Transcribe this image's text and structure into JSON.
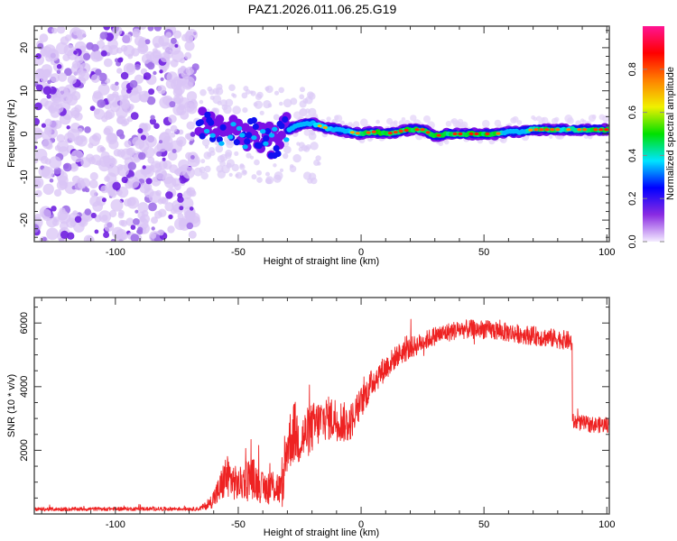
{
  "title": "PAZ1.2026.011.06.25.G19",
  "chart_data": [
    {
      "type": "heatmap",
      "name": "spectrogram",
      "title": "PAZ1.2026.011.06.25.G19",
      "xlabel": "Height of straight line (km)",
      "ylabel": "Frequency (Hz)",
      "xlim": [
        -133,
        101
      ],
      "ylim": [
        -25,
        25
      ],
      "x_ticks": [
        -100,
        -50,
        0,
        50,
        100
      ],
      "x_tick_labels": [
        "-100",
        "-50",
        "0",
        "50",
        "100"
      ],
      "y_ticks": [
        -20,
        -10,
        0,
        10,
        20
      ],
      "y_tick_labels": [
        "-20",
        "-10",
        "0",
        "10",
        "20"
      ],
      "noise_region_x": [
        -133,
        -67
      ],
      "ridge": {
        "description": "Signal ridge near 0 Hz: scattered low-amplitude blobs from -65 to -30 km, coherent high-amplitude line from -30 to 101 km",
        "x": [
          -65,
          -60,
          -55,
          -50,
          -45,
          -40,
          -35,
          -30,
          -25,
          -20,
          -15,
          -10,
          -5,
          0,
          5,
          10,
          15,
          20,
          25,
          30,
          35,
          40,
          45,
          50,
          55,
          60,
          65,
          70,
          75,
          80,
          85,
          90,
          95,
          100
        ],
        "freq_hz": [
          2,
          1.5,
          0,
          1,
          0,
          -1,
          -2,
          1,
          2,
          2.5,
          1.5,
          1,
          0.5,
          0,
          0.5,
          0,
          0.5,
          1,
          1,
          -0.5,
          0,
          0,
          0,
          0,
          0,
          0.5,
          0.5,
          1,
          1,
          1,
          1,
          1,
          1,
          1
        ],
        "amplitude": [
          0.2,
          0.25,
          0.2,
          0.3,
          0.25,
          0.3,
          0.35,
          0.45,
          0.55,
          0.7,
          0.8,
          0.6,
          0.75,
          0.85,
          0.9,
          0.95,
          0.9,
          0.95,
          0.9,
          0.95,
          0.9,
          0.95,
          0.95,
          0.95,
          0.9,
          0.6,
          0.6,
          0.85,
          0.9,
          0.85,
          0.8,
          0.85,
          0.9,
          0.95
        ]
      },
      "colorbar": {
        "label": "Normalized spectral amplitude",
        "range": [
          0,
          1
        ],
        "ticks": [
          0.0,
          0.2,
          0.4,
          0.6,
          0.8
        ],
        "tick_labels": [
          "0.0",
          "0.2",
          "0.4",
          "0.6",
          "0.8"
        ],
        "colors": [
          "#f4ecff",
          "#8a2be2",
          "#0000ff",
          "#00e5ff",
          "#00e000",
          "#f0f000",
          "#ff8000",
          "#ff0000",
          "#ff1493"
        ]
      }
    },
    {
      "type": "line",
      "name": "snr",
      "xlabel": "Height of straight line (km)",
      "ylabel": "SNR (10 * v/v)",
      "xlim": [
        -133,
        101
      ],
      "ylim": [
        0,
        6800
      ],
      "x_ticks": [
        -100,
        -50,
        0,
        50,
        100
      ],
      "x_tick_labels": [
        "-100",
        "-50",
        "0",
        "50",
        "100"
      ],
      "y_ticks": [
        2000,
        4000,
        6000
      ],
      "y_tick_labels": [
        "2000",
        "4000",
        "6000"
      ],
      "color": "#ee2222",
      "series": [
        {
          "name": "SNR",
          "x": [
            -133,
            -120,
            -100,
            -80,
            -66,
            -62,
            -58,
            -55,
            -50,
            -45,
            -40,
            -35,
            -32,
            -30,
            -27,
            -25,
            -20,
            -15,
            -10,
            -5,
            0,
            5,
            10,
            15,
            20,
            25,
            30,
            35,
            40,
            45,
            50,
            55,
            60,
            65,
            70,
            75,
            80,
            84,
            85.5,
            86,
            90,
            95,
            101
          ],
          "y": [
            150,
            150,
            160,
            160,
            160,
            300,
            700,
            1200,
            900,
            1200,
            800,
            900,
            700,
            2200,
            2600,
            2300,
            2700,
            3000,
            3000,
            2800,
            3500,
            4200,
            4600,
            5000,
            5200,
            5400,
            5600,
            5700,
            5800,
            5800,
            5800,
            5750,
            5700,
            5650,
            5600,
            5550,
            5500,
            5450,
            5400,
            2900,
            2850,
            2800,
            2800
          ],
          "noise_amplitude": [
            60,
            60,
            60,
            60,
            60,
            150,
            450,
            700,
            500,
            700,
            500,
            600,
            500,
            900,
            1000,
            800,
            800,
            700,
            700,
            600,
            500,
            450,
            400,
            350,
            350,
            300,
            300,
            300,
            300,
            300,
            300,
            300,
            300,
            300,
            300,
            300,
            300,
            300,
            300,
            250,
            250,
            250,
            250
          ]
        }
      ]
    }
  ]
}
